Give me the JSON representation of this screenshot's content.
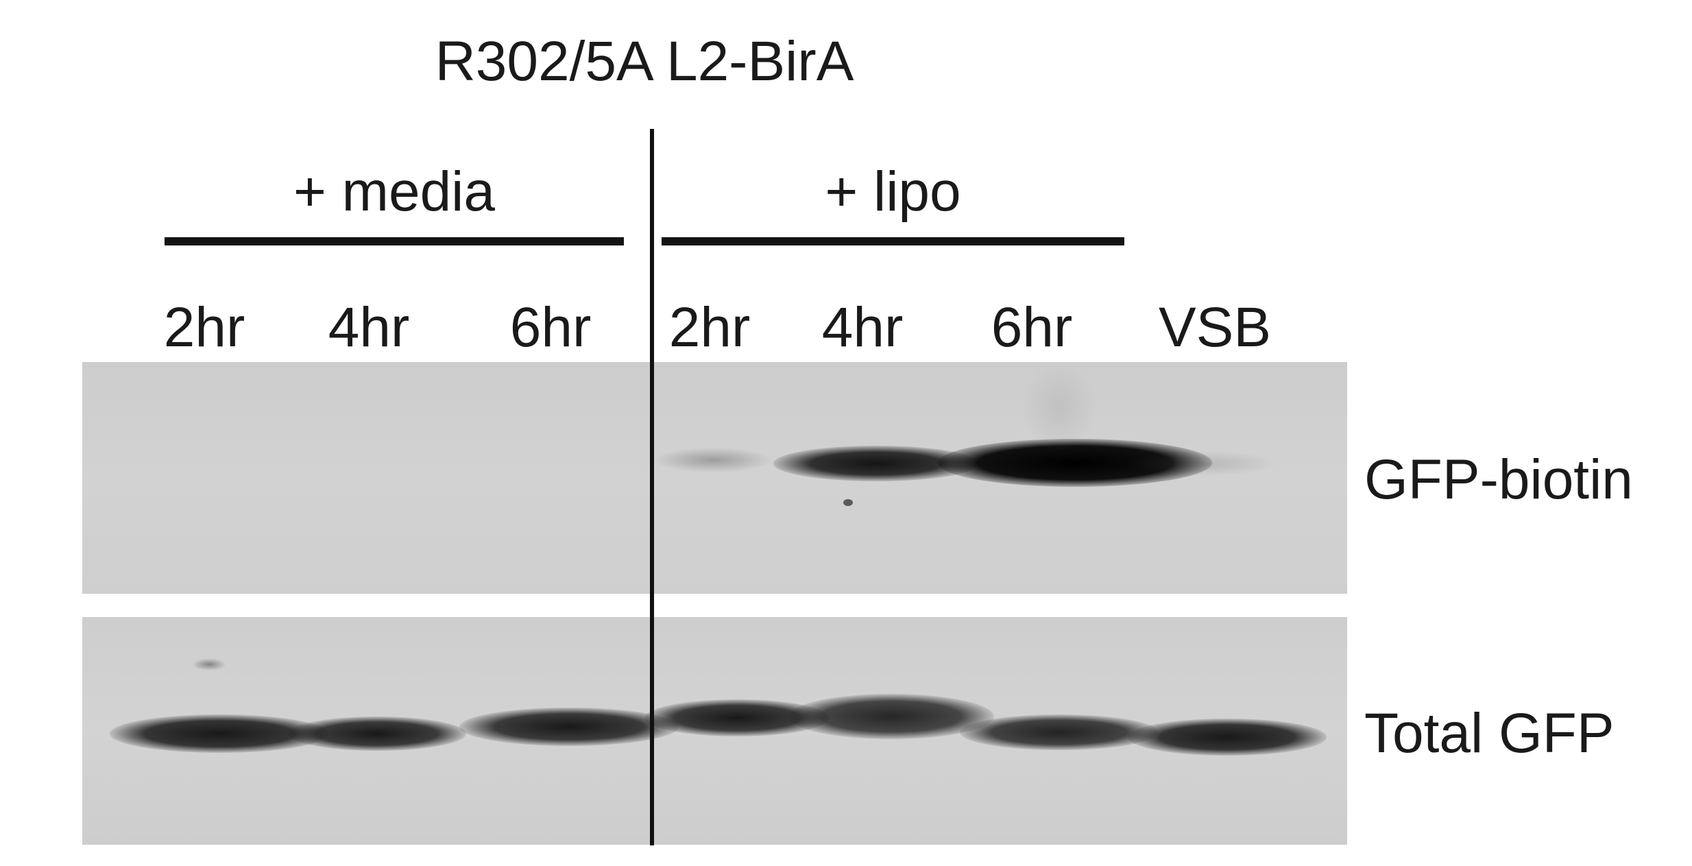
{
  "figure": {
    "title": "R302/5A L2-BirA",
    "groups": [
      {
        "label": "+ media"
      },
      {
        "label": "+ lipo"
      }
    ],
    "lanes": [
      {
        "label": "2hr"
      },
      {
        "label": "4hr"
      },
      {
        "label": "6hr"
      },
      {
        "label": "2hr"
      },
      {
        "label": "4hr"
      },
      {
        "label": "6hr"
      },
      {
        "label": "VSB"
      }
    ],
    "rows": [
      {
        "label": "GFP-biotin"
      },
      {
        "label": "Total GFP"
      }
    ]
  }
}
